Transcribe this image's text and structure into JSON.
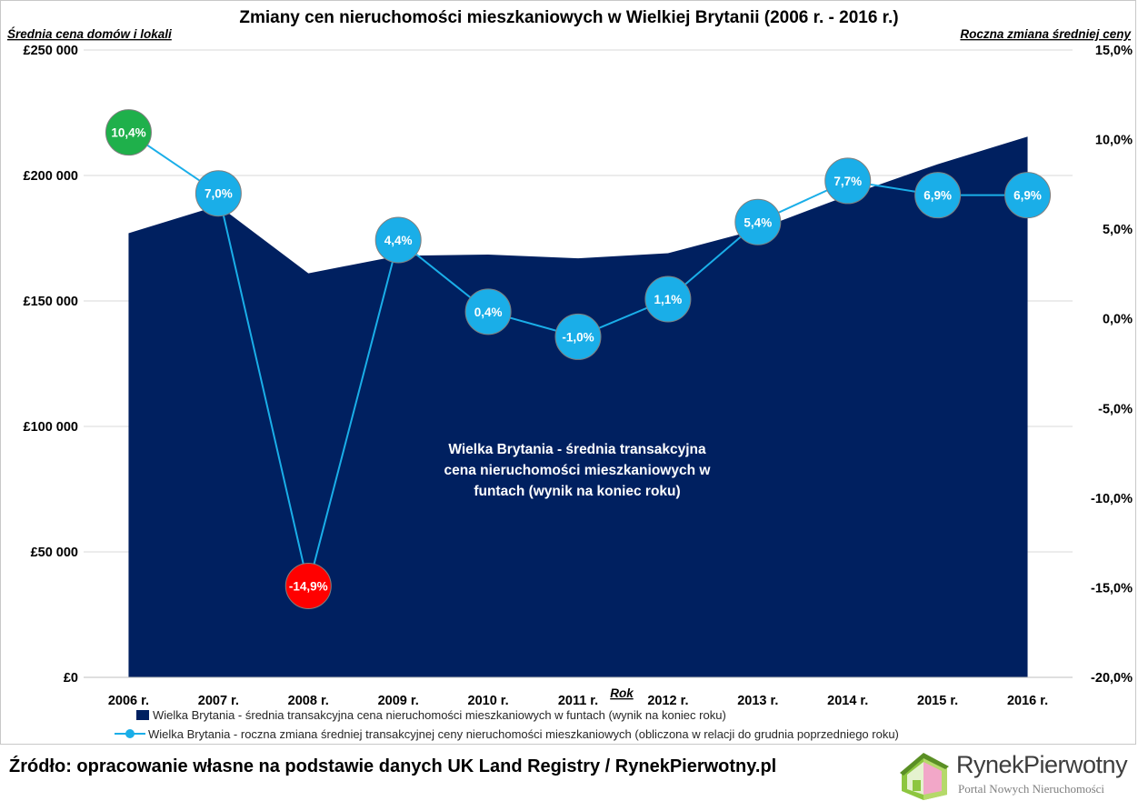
{
  "chart_data": {
    "type": "area+line",
    "title": "Zmiany cen nieruchomości mieszkaniowych w Wielkiej  Brytanii (2006 r. - 2016 r.)",
    "ylabel_left": "Średnia cena domów i lokali",
    "ylabel_right": "Roczna zmiana średniej ceny",
    "xlabel": "Rok",
    "categories": [
      "2006 r.",
      "2007 r.",
      "2008 r.",
      "2009 r.",
      "2010 r.",
      "2011 r.",
      "2012 r.",
      "2013 r.",
      "2014 r.",
      "2015 r.",
      "2016 r."
    ],
    "left_axis": {
      "min": 0,
      "max": 250000,
      "ticks": [
        "£0",
        "£50 000",
        "£100 000",
        "£150 000",
        "£200 000",
        "£250 000"
      ]
    },
    "right_axis": {
      "min": -20,
      "max": 15,
      "ticks": [
        "-20,0%",
        "-15,0%",
        "-10,0%",
        "-5,0%",
        "0,0%",
        "5,0%",
        "10,0%",
        "15,0%"
      ]
    },
    "series": [
      {
        "name": "Wielka Brytania - średnia transakcyjna cena nieruchomości mieszkaniowych w funtach (wynik na koniec roku)",
        "type": "area",
        "axis": "left",
        "color": "#002060",
        "values": [
          177000,
          188000,
          161000,
          168000,
          168500,
          167000,
          169000,
          178500,
          192000,
          204500,
          215500
        ]
      },
      {
        "name": "Wielka Brytania - roczna zmiana średniej transakcyjnej ceny nieruchomości mieszkaniowych (obliczona w relacji do grudnia poprzedniego roku)",
        "type": "line",
        "axis": "right",
        "color": "#1aaee8",
        "values": [
          10.4,
          7.0,
          -14.9,
          4.4,
          0.4,
          -1.0,
          1.1,
          5.4,
          7.7,
          6.9,
          6.9
        ],
        "labels": [
          "10,4%",
          "7,0%",
          "-14,9%",
          "4,4%",
          "0,4%",
          "-1,0%",
          "1,1%",
          "5,4%",
          "7,7%",
          "6,9%",
          "6,9%"
        ],
        "highlight": {
          "max_color": "#1fb04b",
          "min_color": "#ff0000"
        }
      }
    ],
    "area_annotation": [
      "Wielka Brytania - średnia transakcyjna",
      "cena nieruchomości mieszkaniowych w",
      "funtach (wynik na koniec roku)"
    ],
    "grid": true,
    "legend": "bottom"
  },
  "footer": {
    "source": "Źródło: opracowanie własne na podstawie danych UK Land Registry / RynekPierwotny.pl"
  },
  "logo": {
    "name": "RynekPierwotny",
    "tagline": "Portal Nowych Nieruchomości"
  }
}
